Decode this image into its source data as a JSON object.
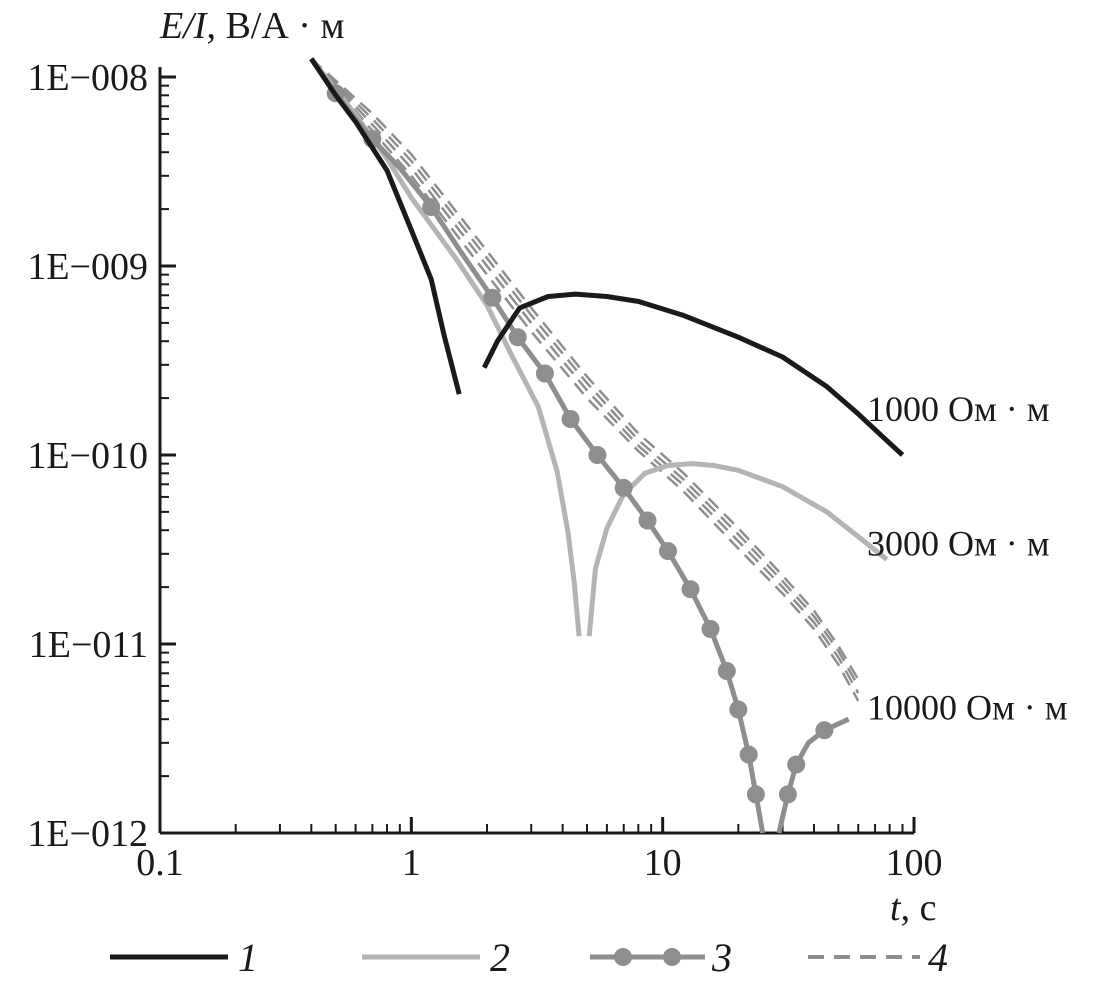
{
  "chart_data": {
    "type": "line",
    "ylabel": {
      "italic": "E/I",
      "rest": ", В/А · м"
    },
    "xlabel": {
      "italic": "t",
      "rest": ", с"
    },
    "x_scale": "log",
    "y_scale": "log",
    "xlim": [
      0.1,
      100
    ],
    "ylim": [
      1e-12,
      1e-08
    ],
    "x_ticks": [
      {
        "value": 0.1,
        "label": "0.1"
      },
      {
        "value": 1,
        "label": "1"
      },
      {
        "value": 10,
        "label": "10"
      },
      {
        "value": 100,
        "label": "100"
      }
    ],
    "y_ticks": [
      {
        "value": 1e-08,
        "label": "1E−008"
      },
      {
        "value": 1e-09,
        "label": "1E−009"
      },
      {
        "value": 1e-10,
        "label": "1E−010"
      },
      {
        "value": 1e-11,
        "label": "1E−011"
      },
      {
        "value": 1e-12,
        "label": "1E−012"
      }
    ],
    "grid": false,
    "legend_position": "bottom",
    "legend": [
      {
        "label": "1",
        "style": "solid",
        "color": "#1a1a1a",
        "markers": false
      },
      {
        "label": "2",
        "style": "solid",
        "color": "#b4b4b4",
        "markers": false
      },
      {
        "label": "3",
        "style": "solid",
        "color": "#8e8e8e",
        "markers": true
      },
      {
        "label": "4",
        "style": "dashed",
        "color": "#8e8e8e",
        "markers": false
      }
    ],
    "annotations": [
      {
        "text": "1000 Ом · м",
        "x": 65,
        "y": 1.75e-10
      },
      {
        "text": "3000 Ом · м",
        "x": 65,
        "y": 3.4e-11
      },
      {
        "text": "10000 Ом · м",
        "x": 65,
        "y": 4.6e-12
      }
    ],
    "series": [
      {
        "id": "curve-1000-early",
        "group": "1",
        "color": "#1a1a1a",
        "width": 5,
        "style": "solid",
        "markers": false,
        "points": [
          [
            0.4,
            1.25e-08
          ],
          [
            0.5,
            8e-09
          ],
          [
            0.6,
            5.8e-09
          ],
          [
            0.8,
            3.2e-09
          ],
          [
            1.0,
            1.55e-09
          ],
          [
            1.2,
            8.5e-10
          ],
          [
            1.35,
            4.3e-10
          ],
          [
            1.55,
            2.1e-10
          ]
        ]
      },
      {
        "id": "curve-1000-late",
        "group": "1",
        "color": "#1a1a1a",
        "width": 5,
        "style": "solid",
        "markers": false,
        "points": [
          [
            1.95,
            2.9e-10
          ],
          [
            2.2,
            4e-10
          ],
          [
            2.7,
            6e-10
          ],
          [
            3.5,
            6.9e-10
          ],
          [
            4.5,
            7.1e-10
          ],
          [
            6.0,
            6.9e-10
          ],
          [
            8.0,
            6.5e-10
          ],
          [
            12.0,
            5.5e-10
          ],
          [
            20.0,
            4.2e-10
          ],
          [
            30.0,
            3.3e-10
          ],
          [
            45.0,
            2.3e-10
          ],
          [
            60.0,
            1.65e-10
          ],
          [
            75.0,
            1.25e-10
          ],
          [
            90.0,
            1e-10
          ]
        ]
      },
      {
        "id": "curve-3000-early",
        "group": "2",
        "color": "#b4b4b4",
        "width": 5,
        "style": "solid",
        "markers": false,
        "points": [
          [
            0.4,
            1.25e-08
          ],
          [
            0.6,
            6.3e-09
          ],
          [
            0.8,
            3.7e-09
          ],
          [
            1.0,
            2.3e-09
          ],
          [
            1.5,
            1.1e-09
          ],
          [
            2.0,
            6.2e-10
          ],
          [
            2.5,
            3.4e-10
          ],
          [
            3.2,
            1.8e-10
          ],
          [
            3.8,
            8.2e-11
          ],
          [
            4.2,
            3.9e-11
          ],
          [
            4.45,
            2.1e-11
          ],
          [
            4.65,
            1.1e-11
          ]
        ]
      },
      {
        "id": "curve-3000-late",
        "group": "2",
        "color": "#b4b4b4",
        "width": 5,
        "style": "solid",
        "markers": false,
        "points": [
          [
            5.1,
            1.1e-11
          ],
          [
            5.4,
            2.5e-11
          ],
          [
            6.0,
            4.1e-11
          ],
          [
            7.0,
            6.2e-11
          ],
          [
            8.5,
            8e-11
          ],
          [
            10.5,
            8.8e-11
          ],
          [
            13.0,
            9e-11
          ],
          [
            16.0,
            8.8e-11
          ],
          [
            20.0,
            8.3e-11
          ],
          [
            30.0,
            6.8e-11
          ],
          [
            45.0,
            5e-11
          ],
          [
            60.0,
            3.7e-11
          ],
          [
            78.0,
            2.8e-11
          ]
        ]
      },
      {
        "id": "curve-10000-early",
        "group": "3",
        "color": "#8e8e8e",
        "width": 5,
        "style": "solid",
        "markers": false,
        "points": [
          [
            0.4,
            1.25e-08
          ],
          [
            0.5,
            8.2e-09
          ],
          [
            0.6,
            6e-09
          ],
          [
            0.7,
            4.7e-09
          ],
          [
            0.9,
            3.3e-09
          ],
          [
            1.2,
            2.05e-09
          ],
          [
            1.6,
            1.15e-09
          ],
          [
            2.1,
            6.8e-10
          ],
          [
            2.65,
            4.2e-10
          ],
          [
            3.4,
            2.7e-10
          ],
          [
            4.3,
            1.55e-10
          ],
          [
            5.5,
            1e-10
          ],
          [
            7.0,
            6.7e-11
          ],
          [
            8.7,
            4.5e-11
          ],
          [
            10.5,
            3.1e-11
          ],
          [
            12.9,
            1.95e-11
          ],
          [
            15.5,
            1.2e-11
          ],
          [
            18.0,
            7.2e-12
          ],
          [
            20.0,
            4.5e-12
          ],
          [
            22.0,
            2.6e-12
          ],
          [
            23.5,
            1.6e-12
          ],
          [
            25.0,
            1e-12
          ]
        ]
      },
      {
        "id": "curve-10000-late",
        "group": "3",
        "color": "#8e8e8e",
        "width": 5,
        "style": "solid",
        "markers": false,
        "points": [
          [
            29.0,
            1e-12
          ],
          [
            31.5,
            1.6e-12
          ],
          [
            34.0,
            2.3e-12
          ],
          [
            38.0,
            3e-12
          ],
          [
            44.0,
            3.5e-12
          ],
          [
            55.0,
            4e-12
          ]
        ]
      },
      {
        "id": "markers-10000",
        "group": "3",
        "color": "#8e8e8e",
        "width": 0,
        "style": "markers",
        "markers": true,
        "points": [
          [
            0.5,
            8.2e-09
          ],
          [
            0.7,
            4.7e-09
          ],
          [
            1.2,
            2.05e-09
          ],
          [
            2.1,
            6.8e-10
          ],
          [
            2.65,
            4.2e-10
          ],
          [
            3.4,
            2.7e-10
          ],
          [
            4.3,
            1.55e-10
          ],
          [
            5.5,
            1e-10
          ],
          [
            7.0,
            6.7e-11
          ],
          [
            8.7,
            4.5e-11
          ],
          [
            10.5,
            3.1e-11
          ],
          [
            12.9,
            1.95e-11
          ],
          [
            15.5,
            1.2e-11
          ],
          [
            18.0,
            7.2e-12
          ],
          [
            20.0,
            4.5e-12
          ],
          [
            22.0,
            2.6e-12
          ],
          [
            23.5,
            1.6e-12
          ],
          [
            31.5,
            1.6e-12
          ],
          [
            34.0,
            2.3e-12
          ],
          [
            44.0,
            3.5e-12
          ]
        ]
      },
      {
        "id": "dashed-a",
        "group": "4",
        "color": "#8e8e8e",
        "width": 2.5,
        "style": "dashed",
        "markers": false,
        "points": [
          [
            0.4,
            1.25e-08
          ],
          [
            0.7,
            5.2e-09
          ],
          [
            1.0,
            3e-09
          ],
          [
            2.0,
            9e-10
          ],
          [
            3.0,
            4.5e-10
          ],
          [
            5.0,
            2e-10
          ],
          [
            8.0,
            1.05e-10
          ],
          [
            12.0,
            6.5e-11
          ],
          [
            20.0,
            3.2e-11
          ],
          [
            30.0,
            1.85e-11
          ],
          [
            40.0,
            1.2e-11
          ],
          [
            50.0,
            7.8e-12
          ],
          [
            60.0,
            5e-12
          ]
        ]
      },
      {
        "id": "dashed-b",
        "group": "4",
        "color": "#8e8e8e",
        "width": 2.5,
        "style": "dashed",
        "markers": false,
        "points": [
          [
            0.4,
            1.25e-08
          ],
          [
            0.7,
            5.6e-09
          ],
          [
            1.0,
            3.3e-09
          ],
          [
            2.0,
            1e-09
          ],
          [
            3.0,
            5e-10
          ],
          [
            5.0,
            2.2e-10
          ],
          [
            8.0,
            1.12e-10
          ],
          [
            12.0,
            7e-11
          ],
          [
            20.0,
            3.5e-11
          ],
          [
            30.0,
            2e-11
          ],
          [
            40.0,
            1.3e-11
          ],
          [
            50.0,
            8.5e-12
          ],
          [
            60.0,
            5.5e-12
          ]
        ]
      },
      {
        "id": "dashed-c",
        "group": "4",
        "color": "#8e8e8e",
        "width": 2.5,
        "style": "dashed",
        "markers": false,
        "points": [
          [
            0.4,
            1.25e-08
          ],
          [
            0.7,
            6e-09
          ],
          [
            1.0,
            3.6e-09
          ],
          [
            2.0,
            1.1e-09
          ],
          [
            3.0,
            5.5e-10
          ],
          [
            5.0,
            2.4e-10
          ],
          [
            8.0,
            1.2e-10
          ],
          [
            12.0,
            7.5e-11
          ],
          [
            20.0,
            3.8e-11
          ],
          [
            30.0,
            2.15e-11
          ],
          [
            40.0,
            1.4e-11
          ],
          [
            50.0,
            9.2e-12
          ],
          [
            60.0,
            6e-12
          ]
        ]
      },
      {
        "id": "dashed-d",
        "group": "4",
        "color": "#8e8e8e",
        "width": 2.5,
        "style": "dashed",
        "markers": false,
        "points": [
          [
            0.4,
            1.25e-08
          ],
          [
            0.7,
            6.4e-09
          ],
          [
            1.0,
            3.9e-09
          ],
          [
            2.0,
            1.2e-09
          ],
          [
            3.0,
            6e-10
          ],
          [
            5.0,
            2.6e-10
          ],
          [
            8.0,
            1.3e-10
          ],
          [
            12.0,
            8.1e-11
          ],
          [
            20.0,
            4.1e-11
          ],
          [
            30.0,
            2.3e-11
          ],
          [
            40.0,
            1.5e-11
          ],
          [
            50.0,
            9.8e-12
          ],
          [
            60.0,
            6.5e-12
          ]
        ]
      }
    ]
  }
}
